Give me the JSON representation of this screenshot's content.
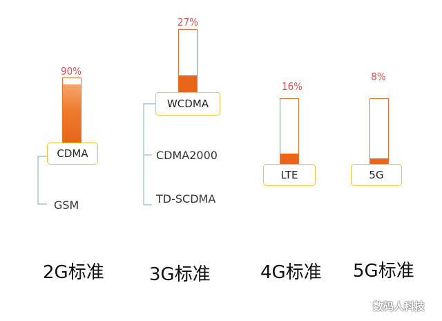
{
  "columns": [
    {
      "id": "2g",
      "percent_label": "90%",
      "share": 0.9,
      "main_standard": "CDMA",
      "other_standards": [
        "GSM"
      ],
      "caption": "2G标准"
    },
    {
      "id": "3g",
      "percent_label": "27%",
      "share": 0.27,
      "main_standard": "WCDMA",
      "other_standards": [
        "CDMA2000",
        "TD-SCDMA"
      ],
      "caption": "3G标准"
    },
    {
      "id": "4g",
      "percent_label": "16%",
      "share": 0.16,
      "main_standard": "LTE",
      "other_standards": [],
      "caption": "4G标准"
    },
    {
      "id": "5g",
      "percent_label": "8%",
      "share": 0.08,
      "main_standard": "5G",
      "other_standards": [],
      "caption": "5G标准"
    }
  ],
  "watermark": "数码人科技",
  "colors": {
    "bar_fill": "#e8651a",
    "bar_border": "#e8742a",
    "box_border": "#f0c23c",
    "percent_text": "#d9534f",
    "connector": "#8fb3d9"
  }
}
